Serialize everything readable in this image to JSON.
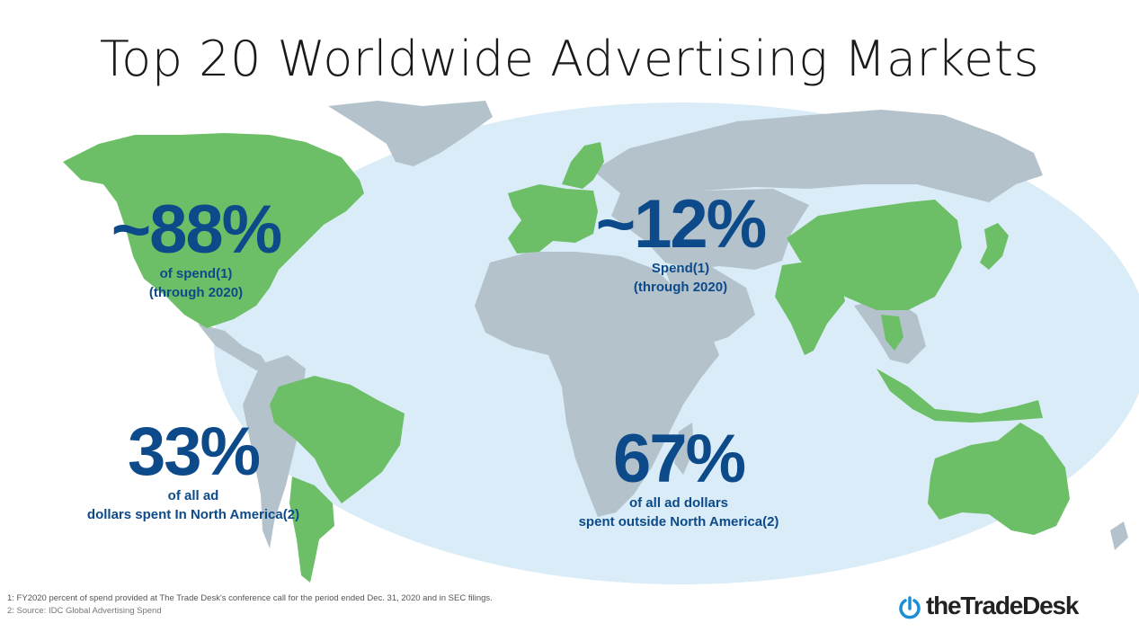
{
  "title": "Top 20 Worldwide Advertising Markets",
  "stats": {
    "na_spend": {
      "value": "~88%",
      "line1": "of spend(1)",
      "line2": "(through 2020)"
    },
    "intl_spend": {
      "value": "~12%",
      "line1": "Spend(1)",
      "line2": "(through 2020)"
    },
    "na_dollars": {
      "value": "33%",
      "line1": "of all ad",
      "line2": "dollars spent In North America(2)"
    },
    "intl_dollars": {
      "value": "67%",
      "line1": "of all ad dollars",
      "line2": "spent outside North America(2)"
    }
  },
  "footnotes": {
    "note1": "1: FY2020 percent of spend provided at The Trade Desk's conference call for the period ended Dec. 31, 2020 and in SEC filings.",
    "note2": "2: Source: IDC Global Advertising Spend"
  },
  "logo": {
    "text": "theTradeDesk"
  },
  "colors": {
    "highlight_country": "#6dbf67",
    "other_country": "#b4c2cc",
    "ellipse": "#d9ecf7",
    "stat_text": "#0d4a8a",
    "logo_mark": "#1a8fd6"
  }
}
